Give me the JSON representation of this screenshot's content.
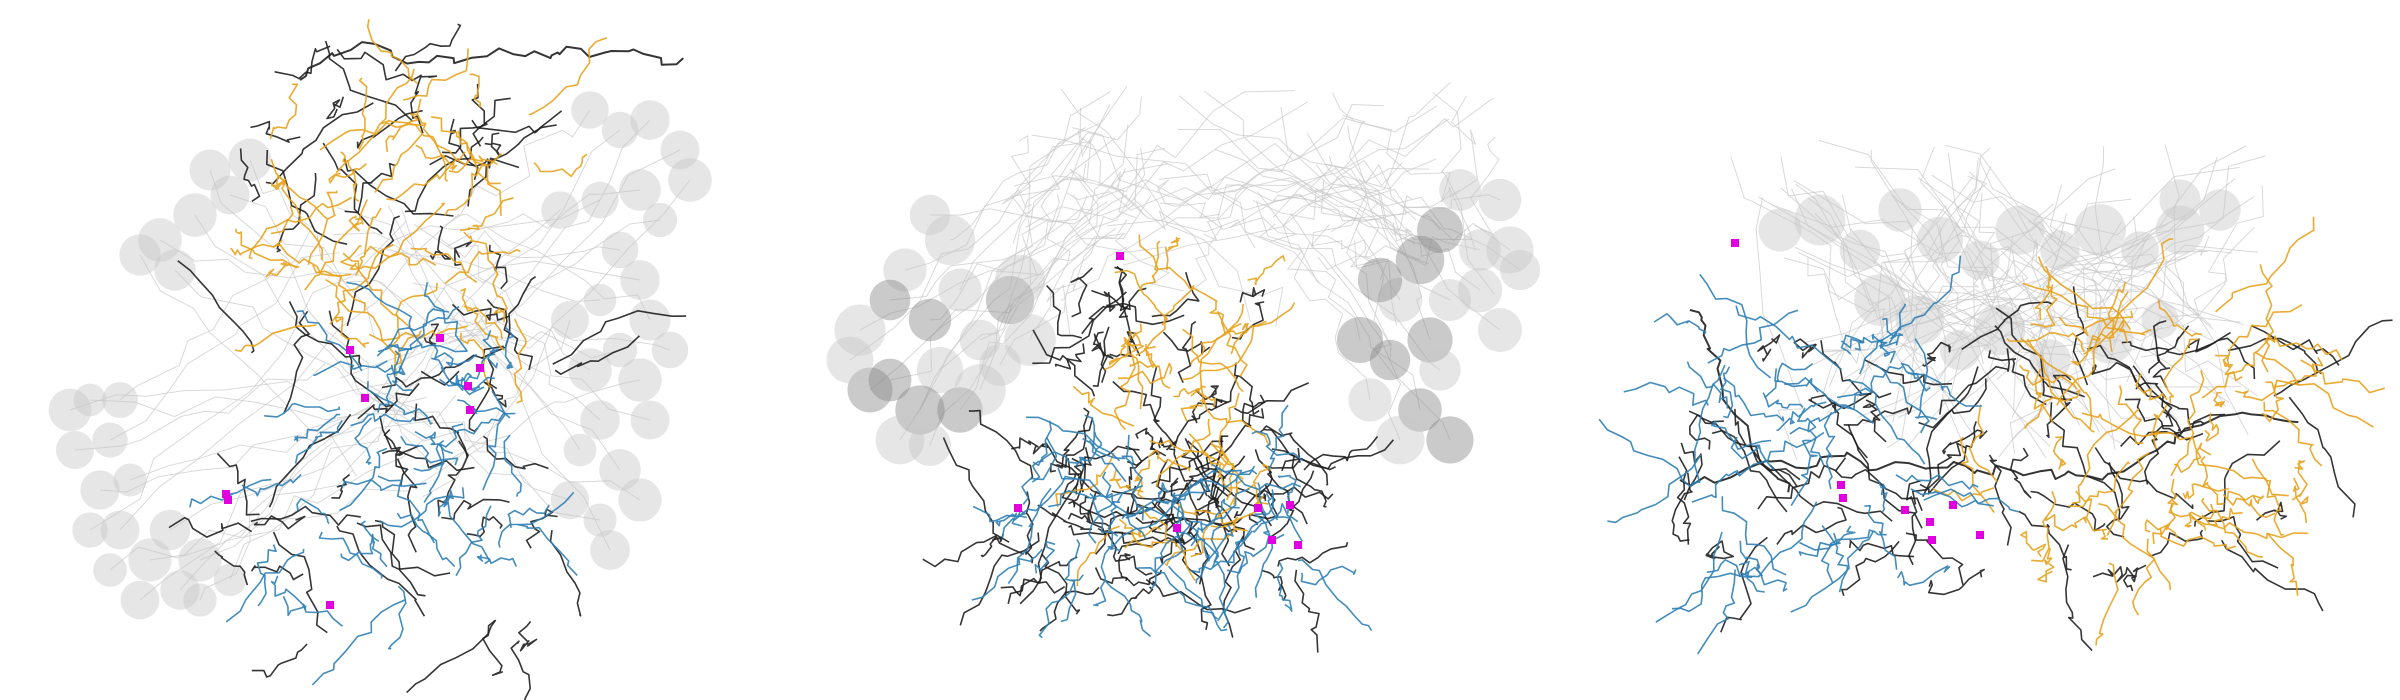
{
  "figure": {
    "background": "#ffffff",
    "colors": {
      "soma": "#c8c8c8",
      "soma_dense": "#8a8a8a",
      "faint_fiber": "#c9c9c9",
      "class_black": "#1f1f1f",
      "class_orange": "#e8a21c",
      "class_blue": "#2f7fb5",
      "marker": "#e000e0"
    },
    "panels": [
      {
        "id": "panel-left",
        "view": "front"
      },
      {
        "id": "panel-middle",
        "view": "top"
      },
      {
        "id": "panel-right",
        "view": "side"
      }
    ]
  }
}
